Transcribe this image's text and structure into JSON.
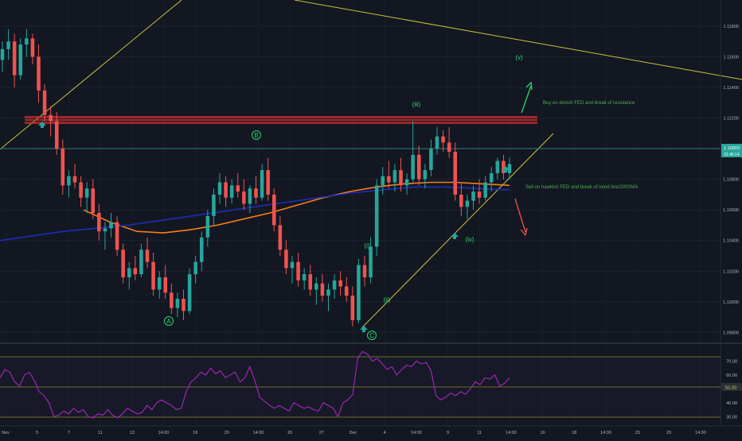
{
  "theme": {
    "background": "#131722",
    "grid": "#1e2230",
    "axis_text": "#b2b5be",
    "candle_up": "#26a69a",
    "candle_down": "#ef5350",
    "ema_line": "#f57f17",
    "sma200_line": "#1e2db8",
    "trend_line": "#c9c23a",
    "resistance_zone": "#d32f2f",
    "rsi_line": "#9c27b0",
    "rsi_level_line": "#8a8a2a",
    "wave_label": "#26d96a",
    "annotation_text": "#4caf50",
    "price_label_bg": "#26a69a",
    "price_line": "#2e7d7a"
  },
  "chart_data": [
    {
      "type": "candlestick",
      "ylim": [
        1.0975,
        1.1195
      ],
      "y_ticks": [
        "1.11800",
        "1.11600",
        "1.11400",
        "1.11200",
        "1.11000",
        "1.10800",
        "1.10600",
        "1.10400",
        "1.10200",
        "1.10000",
        "1.09800"
      ],
      "x_ticks": [
        "Nov",
        "5",
        "7",
        "11",
        "13",
        "14:00",
        "18",
        "20",
        "14:00",
        "25",
        "27",
        "Dec",
        "4",
        "14:00",
        "9",
        "11",
        "14:00",
        "16",
        "18",
        "14:00",
        "23",
        "25",
        "14:00"
      ],
      "current_price": {
        "value": 1.109,
        "label": "1.10903",
        "countdown": "01:46:14"
      },
      "series": [
        {
          "name": "price",
          "ohlc": [
            [
              1.1158,
              1.117,
              1.115,
              1.1165
            ],
            [
              1.1165,
              1.1178,
              1.1158,
              1.117
            ],
            [
              1.117,
              1.1175,
              1.114,
              1.1148
            ],
            [
              1.1148,
              1.1172,
              1.1145,
              1.1168
            ],
            [
              1.1168,
              1.1178,
              1.116,
              1.1172
            ],
            [
              1.1172,
              1.1175,
              1.1155,
              1.116
            ],
            [
              1.116,
              1.1168,
              1.113,
              1.1138
            ],
            [
              1.1138,
              1.1142,
              1.1118,
              1.1122
            ],
            [
              1.1122,
              1.1128,
              1.1108,
              1.1118
            ],
            [
              1.1118,
              1.1124,
              1.1096,
              1.11
            ],
            [
              1.11,
              1.1106,
              1.107,
              1.1076
            ],
            [
              1.1076,
              1.1086,
              1.1068,
              1.1082
            ],
            [
              1.1082,
              1.109,
              1.1074,
              1.1078
            ],
            [
              1.1078,
              1.1082,
              1.1062,
              1.1068
            ],
            [
              1.1068,
              1.1078,
              1.1058,
              1.1074
            ],
            [
              1.1074,
              1.108,
              1.1054,
              1.1058
            ],
            [
              1.1058,
              1.1064,
              1.104,
              1.1046
            ],
            [
              1.1046,
              1.1052,
              1.1034,
              1.1048
            ],
            [
              1.1048,
              1.1058,
              1.1042,
              1.1052
            ],
            [
              1.1052,
              1.1056,
              1.103,
              1.1034
            ],
            [
              1.1034,
              1.1038,
              1.1012,
              1.1016
            ],
            [
              1.1016,
              1.1026,
              1.1008,
              1.1022
            ],
            [
              1.1022,
              1.103,
              1.1014,
              1.1018
            ],
            [
              1.1018,
              1.1038,
              1.1016,
              1.1034
            ],
            [
              1.1034,
              1.1042,
              1.1022,
              1.1026
            ],
            [
              1.1026,
              1.1032,
              1.1004,
              1.1008
            ],
            [
              1.1008,
              1.102,
              1.1002,
              1.1016
            ],
            [
              1.1016,
              1.1024,
              1.1002,
              1.1006
            ],
            [
              1.1006,
              1.1012,
              1.0992,
              1.0996
            ],
            [
              1.0996,
              1.1006,
              1.099,
              1.1002
            ],
            [
              1.1002,
              1.1008,
              1.0988,
              1.0994
            ],
            [
              1.0994,
              1.1022,
              1.0992,
              1.1018
            ],
            [
              1.1018,
              1.103,
              1.1012,
              1.1026
            ],
            [
              1.1026,
              1.1046,
              1.102,
              1.1042
            ],
            [
              1.1042,
              1.106,
              1.1036,
              1.1056
            ],
            [
              1.1056,
              1.1074,
              1.105,
              1.107
            ],
            [
              1.107,
              1.1084,
              1.1064,
              1.1078
            ],
            [
              1.1078,
              1.1082,
              1.1062,
              1.1068
            ],
            [
              1.1068,
              1.108,
              1.1064,
              1.1076
            ],
            [
              1.1076,
              1.1084,
              1.1068,
              1.1072
            ],
            [
              1.1072,
              1.108,
              1.106,
              1.1064
            ],
            [
              1.1064,
              1.1076,
              1.1058,
              1.1074
            ],
            [
              1.1074,
              1.1082,
              1.1064,
              1.1068
            ],
            [
              1.1068,
              1.109,
              1.1066,
              1.1086
            ],
            [
              1.1086,
              1.1094,
              1.1066,
              1.107
            ],
            [
              1.107,
              1.1074,
              1.1046,
              1.105
            ],
            [
              1.105,
              1.1056,
              1.103,
              1.1034
            ],
            [
              1.1034,
              1.104,
              1.1018,
              1.1022
            ],
            [
              1.1022,
              1.103,
              1.1012,
              1.1026
            ],
            [
              1.1026,
              1.1032,
              1.101,
              1.1014
            ],
            [
              1.1014,
              1.1022,
              1.1008,
              1.1018
            ],
            [
              1.1018,
              1.1024,
              1.1004,
              1.1008
            ],
            [
              1.1008,
              1.1016,
              1.0998,
              1.1012
            ],
            [
              1.1012,
              1.1018,
              1.1,
              1.1004
            ],
            [
              1.1004,
              1.1012,
              1.0994,
              1.1008
            ],
            [
              1.1008,
              1.1018,
              1.1002,
              1.1014
            ],
            [
              1.1014,
              1.102,
              1.1004,
              1.101
            ],
            [
              1.101,
              1.1016,
              1.1,
              1.1004
            ],
            [
              1.1004,
              1.101,
              1.0984,
              1.0988
            ],
            [
              1.0988,
              1.1028,
              1.0986,
              1.1024
            ],
            [
              1.1024,
              1.103,
              1.101,
              1.1016
            ],
            [
              1.1016,
              1.1042,
              1.1012,
              1.1036
            ],
            [
              1.1036,
              1.108,
              1.103,
              1.1076
            ],
            [
              1.1076,
              1.1088,
              1.107,
              1.1082
            ],
            [
              1.1082,
              1.1092,
              1.1074,
              1.1078
            ],
            [
              1.1078,
              1.109,
              1.1072,
              1.1086
            ],
            [
              1.1086,
              1.1094,
              1.1072,
              1.1076
            ],
            [
              1.1076,
              1.1084,
              1.107,
              1.108
            ],
            [
              1.108,
              1.1118,
              1.1078,
              1.1096
            ],
            [
              1.1096,
              1.1102,
              1.1076,
              1.108
            ],
            [
              1.108,
              1.109,
              1.1074,
              1.1086
            ],
            [
              1.1086,
              1.1106,
              1.1082,
              1.11
            ],
            [
              1.11,
              1.1114,
              1.1096,
              1.1108
            ],
            [
              1.1108,
              1.1112,
              1.1098,
              1.1104
            ],
            [
              1.1104,
              1.1114,
              1.1094,
              1.1098
            ],
            [
              1.1098,
              1.1104,
              1.1066,
              1.107
            ],
            [
              1.107,
              1.1078,
              1.1056,
              1.1062
            ],
            [
              1.1062,
              1.107,
              1.1054,
              1.1066
            ],
            [
              1.1066,
              1.1076,
              1.106,
              1.1072
            ],
            [
              1.1072,
              1.108,
              1.1064,
              1.1068
            ],
            [
              1.1068,
              1.1082,
              1.1066,
              1.1078
            ],
            [
              1.1078,
              1.1088,
              1.1072,
              1.1084
            ],
            [
              1.1084,
              1.1094,
              1.108,
              1.1092
            ],
            [
              1.1092,
              1.1096,
              1.108,
              1.1084
            ],
            [
              1.1084,
              1.1094,
              1.108,
              1.109
            ]
          ]
        },
        {
          "name": "EMA",
          "values": [
            1.106,
            1.1052,
            1.1046,
            1.1045,
            1.1047,
            1.105,
            1.1054,
            1.1058,
            1.1063,
            1.1068,
            1.1072,
            1.1075,
            1.1077,
            1.1078,
            1.1078,
            1.1077,
            1.1076
          ]
        },
        {
          "name": "200SMA",
          "values": [
            1.104,
            1.1043,
            1.1046,
            1.1048,
            1.105,
            1.1053,
            1.1056,
            1.1059,
            1.1062,
            1.1065,
            1.1068,
            1.1071,
            1.1073,
            1.1075,
            1.1075,
            1.1074,
            1.1073
          ]
        }
      ],
      "resistance_zone": [
        1.1112,
        1.1116
      ],
      "wave_labels": [
        "(v)",
        "(iii)",
        "B",
        "(i)",
        "(ii)",
        "(iv)",
        "A",
        "C"
      ],
      "annotations": [
        "Buy on dovish FED and break of resistance",
        "Sell on hawkish FED and break of trend line/200SMA"
      ]
    },
    {
      "type": "line",
      "name": "RSI",
      "ylim": [
        25,
        80
      ],
      "y_ticks": [
        "70.00",
        "60.00",
        "40.00",
        "30.00"
      ],
      "level_label": "50.00",
      "levels": [
        70,
        50,
        30
      ],
      "values": [
        58,
        64,
        62,
        55,
        52,
        60,
        62,
        56,
        48,
        45,
        40,
        30,
        31,
        34,
        32,
        36,
        33,
        35,
        30,
        29,
        32,
        31,
        35,
        31,
        29,
        32,
        36,
        34,
        32,
        33,
        38,
        35,
        40,
        42,
        40,
        38,
        35,
        36,
        48,
        55,
        58,
        62,
        60,
        65,
        61,
        63,
        58,
        60,
        62,
        55,
        58,
        66,
        56,
        44,
        41,
        38,
        36,
        38,
        36,
        34,
        40,
        38,
        36,
        37,
        35,
        34,
        40,
        38,
        36,
        30,
        40,
        42,
        46,
        72,
        77,
        75,
        70,
        72,
        68,
        64,
        66,
        60,
        64,
        67,
        66,
        70,
        68,
        69,
        63,
        45,
        42,
        44,
        47,
        45,
        48,
        46,
        50,
        55,
        53,
        58,
        57,
        60,
        52,
        54,
        58
      ]
    }
  ]
}
